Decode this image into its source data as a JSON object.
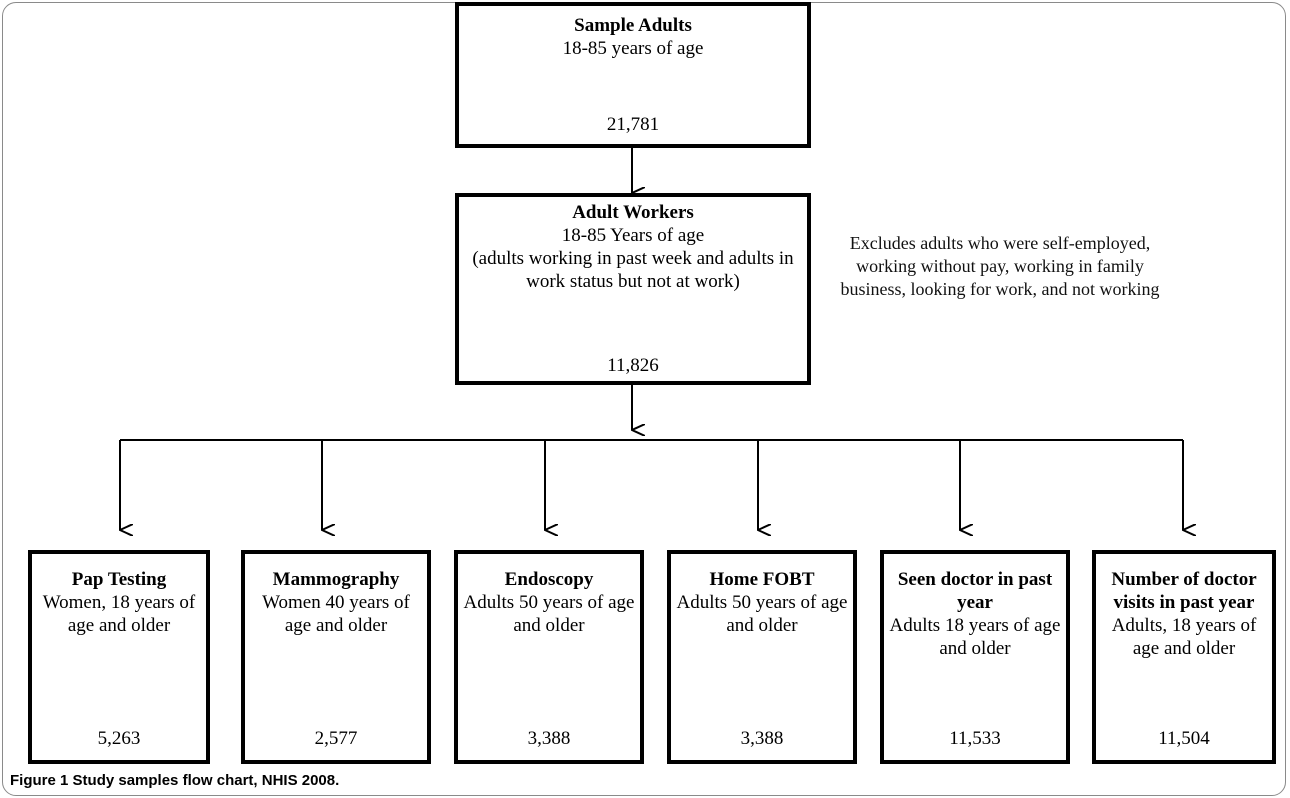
{
  "top_box": {
    "title": "Sample Adults",
    "subtitle": "18-85 years of age",
    "count": "21,781"
  },
  "workers_box": {
    "title": "Adult Workers",
    "subtitle": "18-85 Years of age",
    "description": "(adults working in past week and adults in work status but not at work)",
    "count": "11,826"
  },
  "exclusion_note": "Excludes adults who were self-employed, working without pay, working in family business, looking for work, and not working",
  "outcome_boxes": [
    {
      "title": "Pap Testing",
      "description": "Women, 18 years of age and older",
      "count": "5,263"
    },
    {
      "title": "Mammography",
      "description": "Women 40 years of age and older",
      "count": "2,577"
    },
    {
      "title": "Endoscopy",
      "description": "Adults 50 years of age and older",
      "count": "3,388"
    },
    {
      "title": "Home FOBT",
      "description": "Adults 50 years of age and older",
      "count": "3,388"
    },
    {
      "title": "Seen doctor in past year",
      "description": "Adults 18 years of age and older",
      "count": "11,533"
    },
    {
      "title": "Number of doctor visits in past year",
      "description": "Adults, 18 years of age and older",
      "count": "11,504"
    }
  ],
  "caption": {
    "label": "Figure 1",
    "text": "Study samples flow chart, NHIS 2008."
  }
}
